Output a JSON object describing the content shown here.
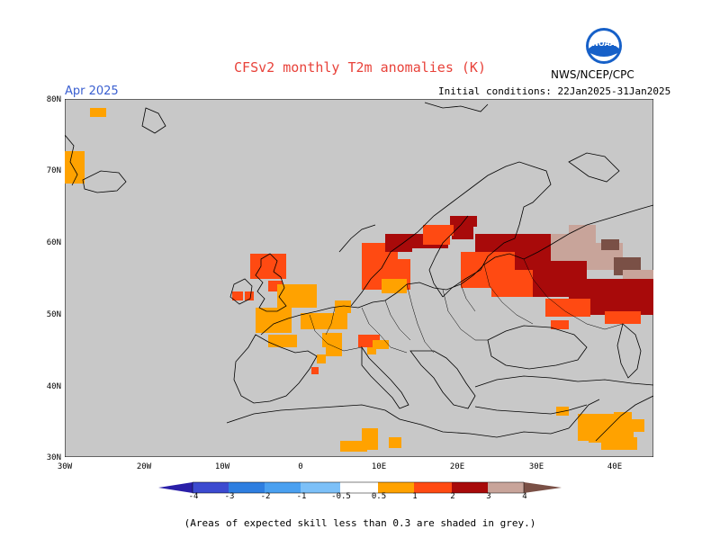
{
  "header": {
    "title": "CFSv2 monthly T2m anomalies (K)",
    "month": "Apr 2025",
    "initial_conditions": "Initial conditions: 22Jan2025-31Jan2025",
    "agency": "NWS/NCEP/CPC",
    "logo_text": "NOAA"
  },
  "map": {
    "region": "Europe",
    "lat_labels": [
      "80N",
      "70N",
      "60N",
      "50N",
      "40N",
      "30N"
    ],
    "lon_labels": [
      "30W",
      "20W",
      "10W",
      "0",
      "10E",
      "20E",
      "30E",
      "40E"
    ],
    "background_color": "#c8c8c8",
    "coast_color": "#000000"
  },
  "legend": {
    "labels": [
      "-4",
      "-3",
      "-2",
      "-1",
      "-0.5",
      "0.5",
      "1",
      "2",
      "3",
      "4"
    ],
    "colors": [
      "#2a1fa8",
      "#3c4ad0",
      "#2e7ee0",
      "#4aa0f0",
      "#7cc0f8",
      "#ffffff",
      "#ffa200",
      "#ff4a12",
      "#a80a0a",
      "#c8a49a",
      "#7a5046"
    ]
  },
  "footnote": "(Areas of expected skill less than 0.3 are shaded in grey.)"
}
